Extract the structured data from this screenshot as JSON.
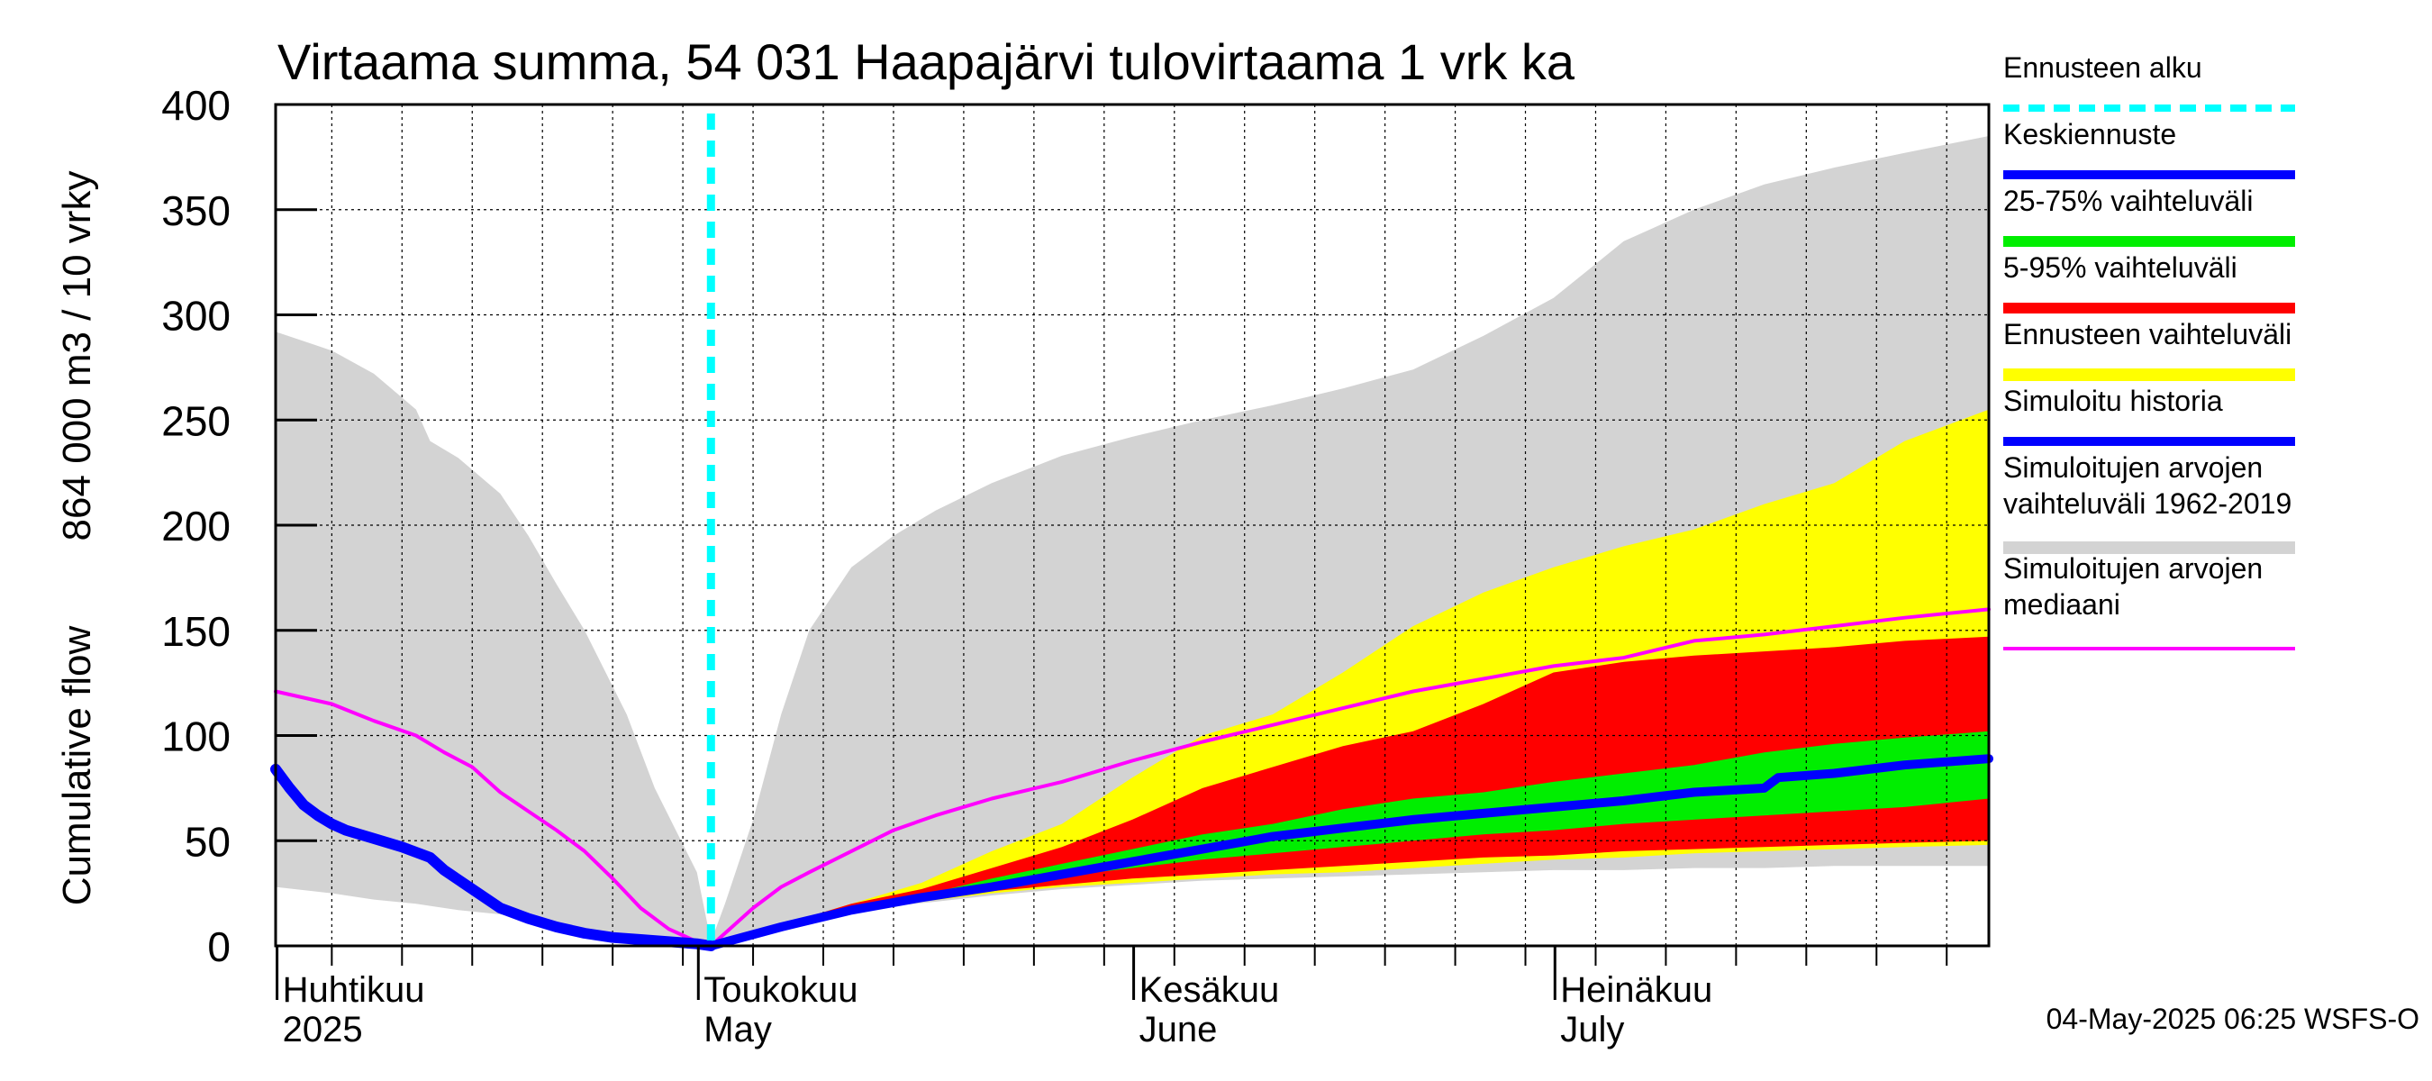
{
  "chart_data": {
    "type": "area",
    "title": "Virtaama summa, 54 031 Haapajärvi tulovirtaama 1 vrk ka",
    "ylabel_line1": "Cumulative flow",
    "ylabel_line2": "864 000 m3 / 10 vrky",
    "ylim": [
      0,
      400
    ],
    "yticks": [
      "0",
      "50",
      "100",
      "150",
      "200",
      "250",
      "300",
      "350",
      "400"
    ],
    "x_unit": "day index (0 = 1 April 2025)",
    "xlim": [
      -1,
      121
    ],
    "forecast_start_day": 30,
    "months": [
      {
        "day": 0,
        "fi": "Huhtikuu",
        "en": "2025"
      },
      {
        "day": 30,
        "fi": "Toukokuu",
        "en": "May"
      },
      {
        "day": 61,
        "fi": "Kesäkuu",
        "en": "June"
      },
      {
        "day": 91,
        "fi": "Heinäkuu",
        "en": "July"
      }
    ],
    "footer": "04-May-2025 06:25 WSFS-O",
    "legend": [
      {
        "label": "Ennusteen alku",
        "color": "#00ffff",
        "style": "dashed"
      },
      {
        "label": "Keskiennuste",
        "color": "#0000ff",
        "style": "solid"
      },
      {
        "label": "25-75% vaihteluväli",
        "color": "#00ee00",
        "style": "solid"
      },
      {
        "label": "5-95% vaihteluväli",
        "color": "#ff0000",
        "style": "solid"
      },
      {
        "label": "Ennusteen vaihteluväli",
        "color": "#ffff00",
        "style": "solid"
      },
      {
        "label": "Simuloitu historia",
        "color": "#0000ff",
        "style": "solid"
      },
      {
        "label": "Simuloitujen arvojen vaihteluväli 1962-2019",
        "label_lines": [
          "Simuloitujen arvojen",
          "vaihteluväli 1962-2019"
        ],
        "color": "#d3d3d3",
        "style": "solid"
      },
      {
        "label": "Simuloitujen arvojen mediaani",
        "label_lines": [
          "Simuloitujen arvojen",
          "mediaani"
        ],
        "color": "#ff00ff",
        "style": "solid"
      }
    ],
    "series": [
      {
        "name": "Simuloitujen arvojen vaihteluväli 1962-2019",
        "kind": "band",
        "color": "#d3d3d3",
        "x": [
          -1,
          3,
          6,
          9,
          10,
          12,
          15,
          17,
          19,
          21,
          24,
          26,
          29,
          30,
          31,
          33,
          35,
          37,
          40,
          43,
          46,
          50,
          55,
          60,
          65,
          70,
          75,
          80,
          85,
          90,
          95,
          100,
          105,
          110,
          115,
          121
        ],
        "upper": [
          292,
          283,
          272,
          255,
          240,
          232,
          215,
          195,
          172,
          150,
          110,
          75,
          35,
          2,
          20,
          60,
          110,
          150,
          180,
          195,
          207,
          220,
          233,
          242,
          250,
          257,
          265,
          274,
          290,
          308,
          335,
          350,
          362,
          370,
          377,
          385
        ],
        "lower": [
          28,
          25,
          22,
          20,
          19,
          17,
          15,
          12,
          9,
          7,
          5,
          3,
          1,
          0,
          2,
          6,
          10,
          13,
          16,
          19,
          21,
          24,
          27,
          29,
          31,
          32,
          33,
          34,
          35,
          36,
          36,
          37,
          37,
          38,
          38,
          38
        ]
      },
      {
        "name": "Ennusteen vaihteluväli",
        "kind": "band",
        "color": "#ffff00",
        "x": [
          30,
          35,
          40,
          45,
          50,
          55,
          60,
          65,
          70,
          75,
          80,
          85,
          90,
          95,
          100,
          105,
          110,
          115,
          121
        ],
        "upper": [
          0,
          10,
          20,
          30,
          45,
          58,
          80,
          100,
          110,
          130,
          152,
          168,
          180,
          190,
          198,
          210,
          220,
          240,
          255
        ],
        "lower": [
          0,
          9,
          16,
          21,
          25,
          28,
          30,
          32,
          34,
          35,
          37,
          39,
          41,
          42,
          44,
          45,
          46,
          47,
          48
        ]
      },
      {
        "name": "5-95% vaihteluväli",
        "kind": "band",
        "color": "#ff0000",
        "x": [
          30,
          35,
          40,
          45,
          50,
          55,
          60,
          65,
          70,
          75,
          80,
          85,
          90,
          95,
          100,
          105,
          110,
          115,
          121
        ],
        "upper": [
          0,
          10,
          20,
          27,
          37,
          47,
          60,
          75,
          85,
          95,
          102,
          115,
          130,
          135,
          138,
          140,
          142,
          145,
          147
        ],
        "lower": [
          0,
          9,
          17,
          22,
          26,
          29,
          32,
          34,
          36,
          38,
          40,
          42,
          43,
          45,
          46,
          47,
          48,
          49,
          50
        ]
      },
      {
        "name": "25-75% vaihteluväli",
        "kind": "band",
        "color": "#00ee00",
        "x": [
          30,
          35,
          40,
          45,
          50,
          55,
          60,
          65,
          70,
          75,
          80,
          85,
          90,
          95,
          100,
          105,
          110,
          115,
          121
        ],
        "upper": [
          0,
          9,
          18,
          24,
          32,
          39,
          46,
          53,
          58,
          65,
          70,
          73,
          78,
          82,
          86,
          92,
          96,
          99,
          102
        ],
        "lower": [
          0,
          9,
          17,
          23,
          28,
          33,
          37,
          41,
          44,
          47,
          50,
          53,
          55,
          58,
          60,
          62,
          64,
          66,
          70
        ]
      },
      {
        "name": "Simuloitujen arvojen mediaani",
        "kind": "line",
        "color": "#ff00ff",
        "x": [
          -1,
          3,
          6,
          9,
          11,
          13,
          15,
          17,
          19,
          21,
          23,
          25,
          27,
          29,
          30,
          31,
          33,
          35,
          37,
          40,
          43,
          46,
          50,
          55,
          60,
          65,
          70,
          75,
          80,
          85,
          90,
          95,
          100,
          105,
          110,
          115,
          121
        ],
        "y": [
          121,
          115,
          107,
          100,
          92,
          85,
          73,
          64,
          55,
          45,
          32,
          18,
          8,
          2,
          0,
          6,
          18,
          28,
          35,
          45,
          55,
          62,
          70,
          78,
          88,
          97,
          105,
          113,
          121,
          127,
          133,
          137,
          145,
          148,
          152,
          156,
          160
        ]
      },
      {
        "name": "Simuloitu historia",
        "kind": "line",
        "color": "#0000ff",
        "x": [
          -1,
          0,
          1,
          2,
          3,
          4,
          6,
          8,
          10,
          11,
          13,
          15,
          17,
          19,
          21,
          23,
          25,
          27,
          29,
          30
        ],
        "y": [
          84,
          75,
          67,
          62,
          58,
          55,
          51,
          47,
          42,
          36,
          27,
          18,
          13,
          9,
          6,
          4,
          3,
          2,
          1,
          0
        ]
      },
      {
        "name": "Keskiennuste",
        "kind": "line",
        "color": "#0000ff",
        "x": [
          30,
          35,
          40,
          45,
          50,
          55,
          60,
          65,
          70,
          75,
          80,
          85,
          90,
          95,
          100,
          105,
          106,
          110,
          115,
          121
        ],
        "y": [
          0,
          9,
          17,
          23,
          28,
          34,
          40,
          46,
          52,
          56,
          60,
          63,
          66,
          69,
          73,
          75,
          80,
          82,
          86,
          89
        ]
      }
    ]
  }
}
